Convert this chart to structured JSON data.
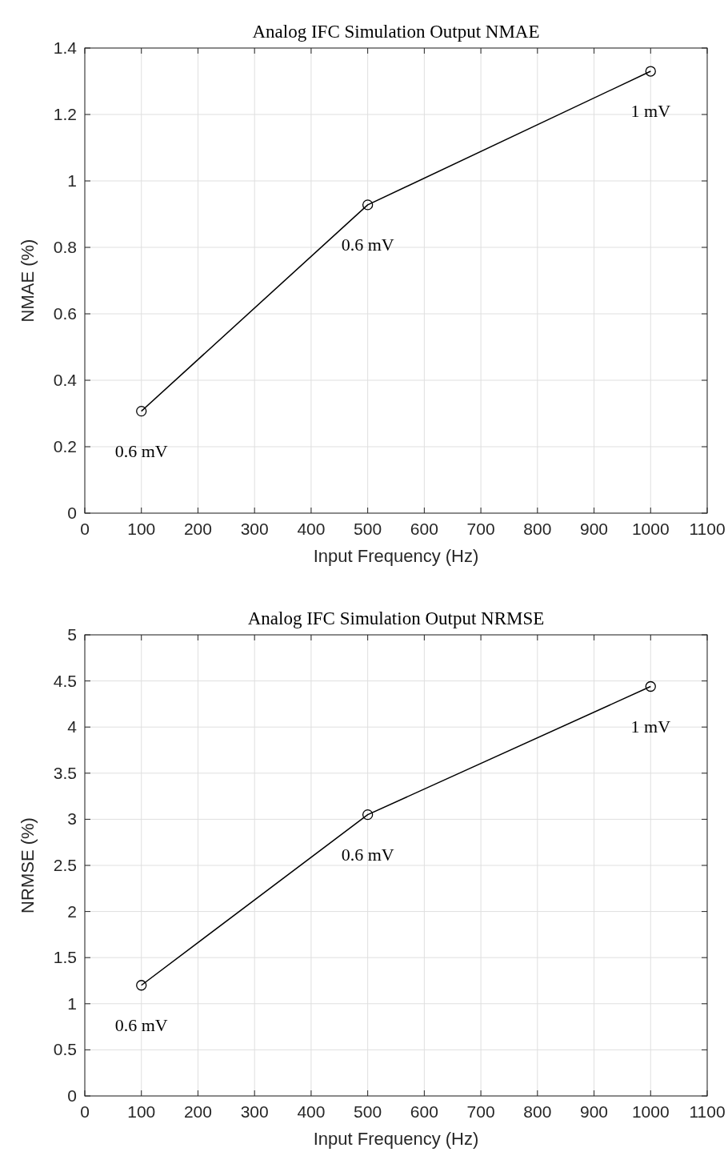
{
  "chart_data": [
    {
      "type": "line",
      "title": "Analog IFC Simulation Output NMAE",
      "xlabel": "Input Frequency (Hz)",
      "ylabel": "NMAE (%)",
      "x": [
        100,
        500,
        1000
      ],
      "series": [
        {
          "color": "#000000",
          "values": [
            0.307,
            0.928,
            1.33
          ]
        }
      ],
      "xlim": [
        0,
        1100
      ],
      "xticks": [
        0,
        100,
        200,
        300,
        400,
        500,
        600,
        700,
        800,
        900,
        1000,
        1100
      ],
      "ylim": [
        0,
        1.4
      ],
      "yticks": [
        0,
        0.2,
        0.4,
        0.6,
        0.8,
        1,
        1.2,
        1.4
      ],
      "grid": true,
      "marker": "circle",
      "line_style": "solid",
      "annotations": [
        {
          "text": "0.6 mV",
          "x": 100,
          "y": 0.307
        },
        {
          "text": "0.6 mV",
          "x": 500,
          "y": 0.928
        },
        {
          "text": "1 mV",
          "x": 1000,
          "y": 1.33
        }
      ]
    },
    {
      "type": "line",
      "title": "Analog IFC Simulation Output NRMSE",
      "xlabel": "Input Frequency (Hz)",
      "ylabel": "NRMSE (%)",
      "x": [
        100,
        500,
        1000
      ],
      "series": [
        {
          "color": "#000000",
          "values": [
            1.2,
            3.05,
            4.44
          ]
        }
      ],
      "xlim": [
        0,
        1100
      ],
      "xticks": [
        0,
        100,
        200,
        300,
        400,
        500,
        600,
        700,
        800,
        900,
        1000,
        1100
      ],
      "ylim": [
        0,
        5
      ],
      "yticks": [
        0,
        0.5,
        1,
        1.5,
        2,
        2.5,
        3,
        3.5,
        4,
        4.5,
        5
      ],
      "grid": true,
      "marker": "circle",
      "line_style": "solid",
      "annotations": [
        {
          "text": "0.6 mV",
          "x": 100,
          "y": 1.2
        },
        {
          "text": "0.6 mV",
          "x": 500,
          "y": 3.05
        },
        {
          "text": "1 mV",
          "x": 1000,
          "y": 4.44
        }
      ]
    }
  ]
}
